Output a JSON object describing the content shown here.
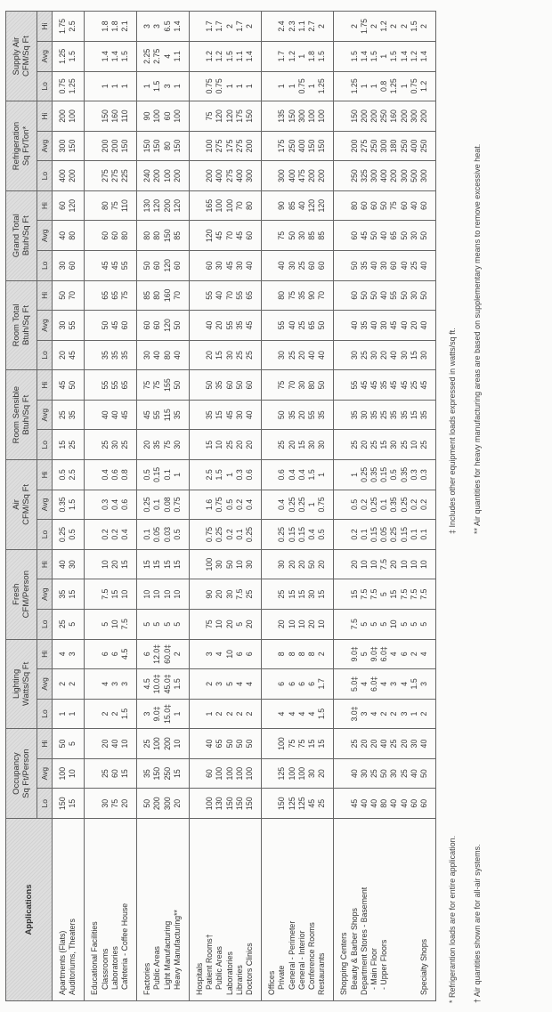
{
  "header": {
    "applications": "Applications",
    "groups": [
      {
        "line1": "Occupancy",
        "line2": "Sq Ft/Person"
      },
      {
        "line1": "Lighting",
        "line2": "Watts/Sq Ft"
      },
      {
        "line1": "Fresh",
        "line2": "CFM/Person"
      },
      {
        "line1": "Air",
        "line2": "CFM/Sq Ft"
      },
      {
        "line1": "Room Sensible",
        "line2": "Btuh/Sq Ft"
      },
      {
        "line1": "Room Total",
        "line2": "Btuh/Sq Ft"
      },
      {
        "line1": "Grand Total",
        "line2": "Btuh/Sq Ft"
      },
      {
        "line1": "Refrigeration",
        "line2": "Sq Ft/Ton*"
      },
      {
        "line1": "Supply Air",
        "line2": "CFM/Sq Ft"
      }
    ],
    "sub": [
      "Lo",
      "Avg",
      "Hi"
    ]
  },
  "sections": [
    {
      "rows": [
        {
          "label": "Apartments (Flats)",
          "values": [
            "150",
            "100",
            "50",
            "1",
            "2",
            "4",
            "25",
            "35",
            "40",
            "0.25",
            "0.35",
            "0.5",
            "15",
            "25",
            "45",
            "20",
            "30",
            "50",
            "30",
            "40",
            "60",
            "400",
            "300",
            "200",
            "0.75",
            "1.25",
            "1.75"
          ]
        },
        {
          "label": "Auditoriums, Theaters",
          "values": [
            "15",
            "10",
            "5",
            "1",
            "2",
            "3",
            "5",
            "15",
            "30",
            "0.5",
            "1.5",
            "2.5",
            "25",
            "35",
            "50",
            "45",
            "55",
            "70",
            "60",
            "80",
            "120",
            "200",
            "150",
            "100",
            "1.25",
            "1.5",
            "2.5"
          ]
        }
      ]
    },
    {
      "rows": [
        {
          "label": "Educational Facilities",
          "values": null
        },
        {
          "label": "Classrooms",
          "sub": true,
          "values": [
            "30",
            "25",
            "20",
            "2",
            "4",
            "6",
            "5",
            "7.5",
            "10",
            "0.2",
            "0.3",
            "0.4",
            "25",
            "40",
            "55",
            "35",
            "50",
            "65",
            "45",
            "60",
            "80",
            "275",
            "200",
            "150",
            "1",
            "1.4",
            "1.8"
          ]
        },
        {
          "label": "Laboratories",
          "sub": true,
          "values": [
            "75",
            "60",
            "40",
            "2",
            "3",
            "6",
            "10",
            "15",
            "20",
            "0.2",
            "0.4",
            "0.6",
            "30",
            "40",
            "55",
            "35",
            "45",
            "65",
            "45",
            "60",
            "75",
            "275",
            "200",
            "160",
            "1",
            "1.4",
            "1.8"
          ]
        },
        {
          "label": "Cafeteria - Coffee House",
          "sub": true,
          "values": [
            "20",
            "15",
            "10",
            "1.5",
            "3",
            "4.5",
            "7.5",
            "10",
            "15",
            "0.4",
            "0.6",
            "0.8",
            "25",
            "45",
            "65",
            "35",
            "60",
            "75",
            "55",
            "80",
            "110",
            "225",
            "150",
            "110",
            "1",
            "1.5",
            "2.1"
          ]
        }
      ]
    },
    {
      "rows": [
        {
          "label": "Factories",
          "values": [
            "50",
            "35",
            "25",
            "3",
            "4.5",
            "6",
            "5",
            "10",
            "15",
            "0.1",
            "0.25",
            "0.5",
            "20",
            "45",
            "75",
            "30",
            "60",
            "85",
            "50",
            "80",
            "130",
            "240",
            "150",
            "90",
            "1",
            "2.25",
            "3"
          ]
        },
        {
          "label": "Public Areas",
          "sub": true,
          "values": [
            "200",
            "150",
            "100",
            "9.0‡",
            "10.0‡",
            "12.0‡",
            "5",
            "10",
            "15",
            "0.05",
            "0.1",
            "0.15",
            "35",
            "55",
            "75",
            "40",
            "60",
            "80",
            "60",
            "80",
            "120",
            "200",
            "150",
            "100",
            "1.5",
            "2.75",
            "3"
          ]
        },
        {
          "label": "Light Manufacturing",
          "sub": true,
          "values": [
            "300",
            "250",
            "200",
            "15.0‡",
            "45.0‡",
            "60.0‡",
            "5",
            "10",
            "15",
            "0.03",
            "0.08",
            "0.1",
            "75",
            "115",
            "155",
            "80",
            "120",
            "160",
            "120",
            "150",
            "200",
            "100",
            "80",
            "60",
            "3",
            "4",
            "6.5"
          ]
        },
        {
          "label": "Heavy Manufacturing**",
          "sub": true,
          "values": [
            "20",
            "15",
            "10",
            "1",
            "1.5",
            "2",
            "5",
            "10",
            "15",
            "0.5",
            "0.75",
            "1",
            "30",
            "35",
            "50",
            "40",
            "50",
            "70",
            "60",
            "85",
            "120",
            "200",
            "150",
            "100",
            "1",
            "1.1",
            "1.4"
          ]
        }
      ]
    },
    {
      "rows": [
        {
          "label": "Hospitals",
          "values": null
        },
        {
          "label": "Patient Rooms†",
          "sub": true,
          "values": [
            "100",
            "60",
            "40",
            "1",
            "2",
            "3",
            "75",
            "90",
            "100",
            "0.75",
            "1.6",
            "2.5",
            "15",
            "35",
            "50",
            "20",
            "40",
            "55",
            "60",
            "120",
            "165",
            "200",
            "100",
            "75",
            "0.75",
            "1.2",
            "1.7"
          ]
        },
        {
          "label": "Public Areas",
          "sub": true,
          "values": [
            "130",
            "100",
            "65",
            "2",
            "3",
            "4",
            "10",
            "20",
            "30",
            "0.25",
            "0.75",
            "1.5",
            "10",
            "15",
            "35",
            "15",
            "20",
            "40",
            "30",
            "45",
            "100",
            "400",
            "275",
            "120",
            "0.75",
            "1.2",
            "1.7"
          ]
        },
        {
          "label": "Laboratories",
          "values": [
            "150",
            "100",
            "50",
            "2",
            "5",
            "10",
            "20",
            "30",
            "50",
            "0.2",
            "0.5",
            "1",
            "25",
            "45",
            "60",
            "30",
            "55",
            "70",
            "45",
            "70",
            "100",
            "275",
            "175",
            "120",
            "1",
            "1.5",
            "2"
          ]
        },
        {
          "label": "Libraries",
          "values": [
            "150",
            "100",
            "50",
            "2",
            "4",
            "6",
            "5",
            "7.5",
            "10",
            "0.1",
            "0.2",
            "0.3",
            "20",
            "30",
            "50",
            "25",
            "35",
            "55",
            "30",
            "45",
            "70",
            "400",
            "275",
            "175",
            "1",
            "1.1",
            "1.7"
          ]
        },
        {
          "label": "Doctors Clinics",
          "values": [
            "150",
            "100",
            "50",
            "2",
            "4",
            "6",
            "20",
            "25",
            "30",
            "0.25",
            "0.4",
            "0.6",
            "20",
            "40",
            "60",
            "25",
            "45",
            "65",
            "40",
            "60",
            "80",
            "300",
            "200",
            "150",
            "1",
            "1.4",
            "2"
          ]
        }
      ]
    },
    {
      "rows": [
        {
          "label": "Offices",
          "values": null
        },
        {
          "label": "Private",
          "sub": true,
          "values": [
            "150",
            "125",
            "100",
            "4",
            "6",
            "8",
            "20",
            "25",
            "30",
            "0.25",
            "0.4",
            "0.6",
            "25",
            "50",
            "75",
            "30",
            "55",
            "80",
            "40",
            "75",
            "90",
            "300",
            "175",
            "135",
            "1",
            "1.7",
            "2.4"
          ]
        },
        {
          "label": "General - Perimeter",
          "sub": true,
          "values": [
            "125",
            "100",
            "75",
            "4",
            "6",
            "8",
            "10",
            "15",
            "20",
            "0.15",
            "0.25",
            "0.4",
            "20",
            "35",
            "70",
            "25",
            "40",
            "75",
            "30",
            "50",
            "85",
            "400",
            "250",
            "150",
            "1",
            "1.2",
            "2.3"
          ]
        },
        {
          "label": "General - Interior",
          "sub": true,
          "values": [
            "125",
            "100",
            "75",
            "4",
            "6",
            "8",
            "10",
            "15",
            "20",
            "0.15",
            "0.25",
            "0.4",
            "15",
            "20",
            "30",
            "20",
            "25",
            "35",
            "25",
            "30",
            "40",
            "475",
            "400",
            "300",
            "0.75",
            "1",
            "1.1"
          ]
        },
        {
          "label": "Conference Rooms",
          "sub": true,
          "values": [
            "45",
            "30",
            "15",
            "4",
            "6",
            "8",
            "20",
            "30",
            "50",
            "0.4",
            "1",
            "1.5",
            "30",
            "55",
            "80",
            "40",
            "65",
            "90",
            "60",
            "85",
            "120",
            "200",
            "150",
            "100",
            "1",
            "1.8",
            "2.7"
          ]
        },
        {
          "label": "Restaurants",
          "values": [
            "25",
            "20",
            "15",
            "1.5",
            "1.7",
            "2",
            "10",
            "15",
            "20",
            "0.5",
            "0.75",
            "1",
            "30",
            "35",
            "50",
            "40",
            "50",
            "70",
            "60",
            "85",
            "120",
            "200",
            "150",
            "100",
            "1.25",
            "1.5",
            "2"
          ]
        }
      ]
    },
    {
      "rows": [
        {
          "label": "Shopping Centers",
          "values": null
        },
        {
          "label": "Beauty & Barber Shops",
          "sub": true,
          "values": [
            "45",
            "40",
            "25",
            "3.0‡",
            "5.0‡",
            "9.0‡",
            "7.5",
            "15",
            "20",
            "0.2",
            "0.5",
            "1",
            "25",
            "35",
            "55",
            "30",
            "40",
            "60",
            "50",
            "60",
            "80",
            "250",
            "200",
            "150",
            "1.25",
            "1.5",
            "2"
          ]
        },
        {
          "label": "Department Stores - Basement",
          "values": [
            "40",
            "30",
            "20",
            "3",
            "4",
            "5",
            "5",
            "7.5",
            "10",
            "0.1",
            "0.2",
            "0.25",
            "20",
            "30",
            "45",
            "25",
            "35",
            "50",
            "35",
            "45",
            "60",
            "325",
            "275",
            "200",
            "1",
            "1.4",
            "1.75"
          ]
        },
        {
          "label": "- Main Floor",
          "sub": true,
          "values": [
            "40",
            "25",
            "20",
            "4",
            "6.0‡",
            "9.0‡",
            "5",
            "7.5",
            "10",
            "0.15",
            "0.25",
            "0.35",
            "25",
            "35",
            "45",
            "30",
            "40",
            "50",
            "40",
            "50",
            "60",
            "300",
            "250",
            "200",
            "1",
            "1.5",
            "2"
          ]
        },
        {
          "label": "- Upper Floors",
          "sub": true,
          "values": [
            "80",
            "50",
            "40",
            "2",
            "4",
            "6.0‡",
            "5",
            "5",
            "7.5",
            "0.05",
            "0.1",
            "0.15",
            "15",
            "25",
            "35",
            "20",
            "30",
            "40",
            "30",
            "40",
            "50",
            "400",
            "300",
            "250",
            "0.8",
            "1",
            "1.2"
          ]
        },
        {
          "label": "",
          "values": [
            "40",
            "30",
            "25",
            "2",
            "3",
            "4",
            "10",
            "15",
            "20",
            "0.25",
            "0.35",
            "0.5",
            "30",
            "35",
            "45",
            "40",
            "45",
            "55",
            "60",
            "65",
            "75",
            "200",
            "180",
            "160",
            "1.25",
            "1.5",
            "2"
          ]
        },
        {
          "label": "",
          "values": [
            "40",
            "25",
            "20",
            "3",
            "4",
            "6",
            "5",
            "7.5",
            "10",
            "0.15",
            "0.25",
            "0.35",
            "25",
            "35",
            "45",
            "30",
            "40",
            "50",
            "40",
            "50",
            "60",
            "300",
            "250",
            "200",
            "1",
            "1.4",
            "2"
          ]
        },
        {
          "label": "",
          "values": [
            "60",
            "40",
            "30",
            "1",
            "1.5",
            "2",
            "5",
            "7.5",
            "10",
            "0.1",
            "0.2",
            "0.3",
            "10",
            "15",
            "25",
            "15",
            "20",
            "30",
            "25",
            "30",
            "40",
            "500",
            "400",
            "300",
            "0.75",
            "1.2",
            "1.5"
          ]
        },
        {
          "label": "Specialty Shops",
          "values": [
            "60",
            "50",
            "40",
            "2",
            "3",
            "4",
            "5",
            "7.5",
            "10",
            "0.1",
            "0.2",
            "0.3",
            "25",
            "35",
            "45",
            "30",
            "40",
            "50",
            "40",
            "50",
            "60",
            "300",
            "250",
            "200",
            "1.2",
            "1.4",
            "2"
          ]
        }
      ]
    }
  ],
  "footnotes": [
    "* Refrigerantion loads are for entire application.",
    "† Air quantities shown are for all-air systems.",
    "‡ Includes other equipment loads expressed in watts/sq ft.",
    "** Air quantities for heavy manufacturing areas are based on supplementary means to remove excessive heat."
  ]
}
